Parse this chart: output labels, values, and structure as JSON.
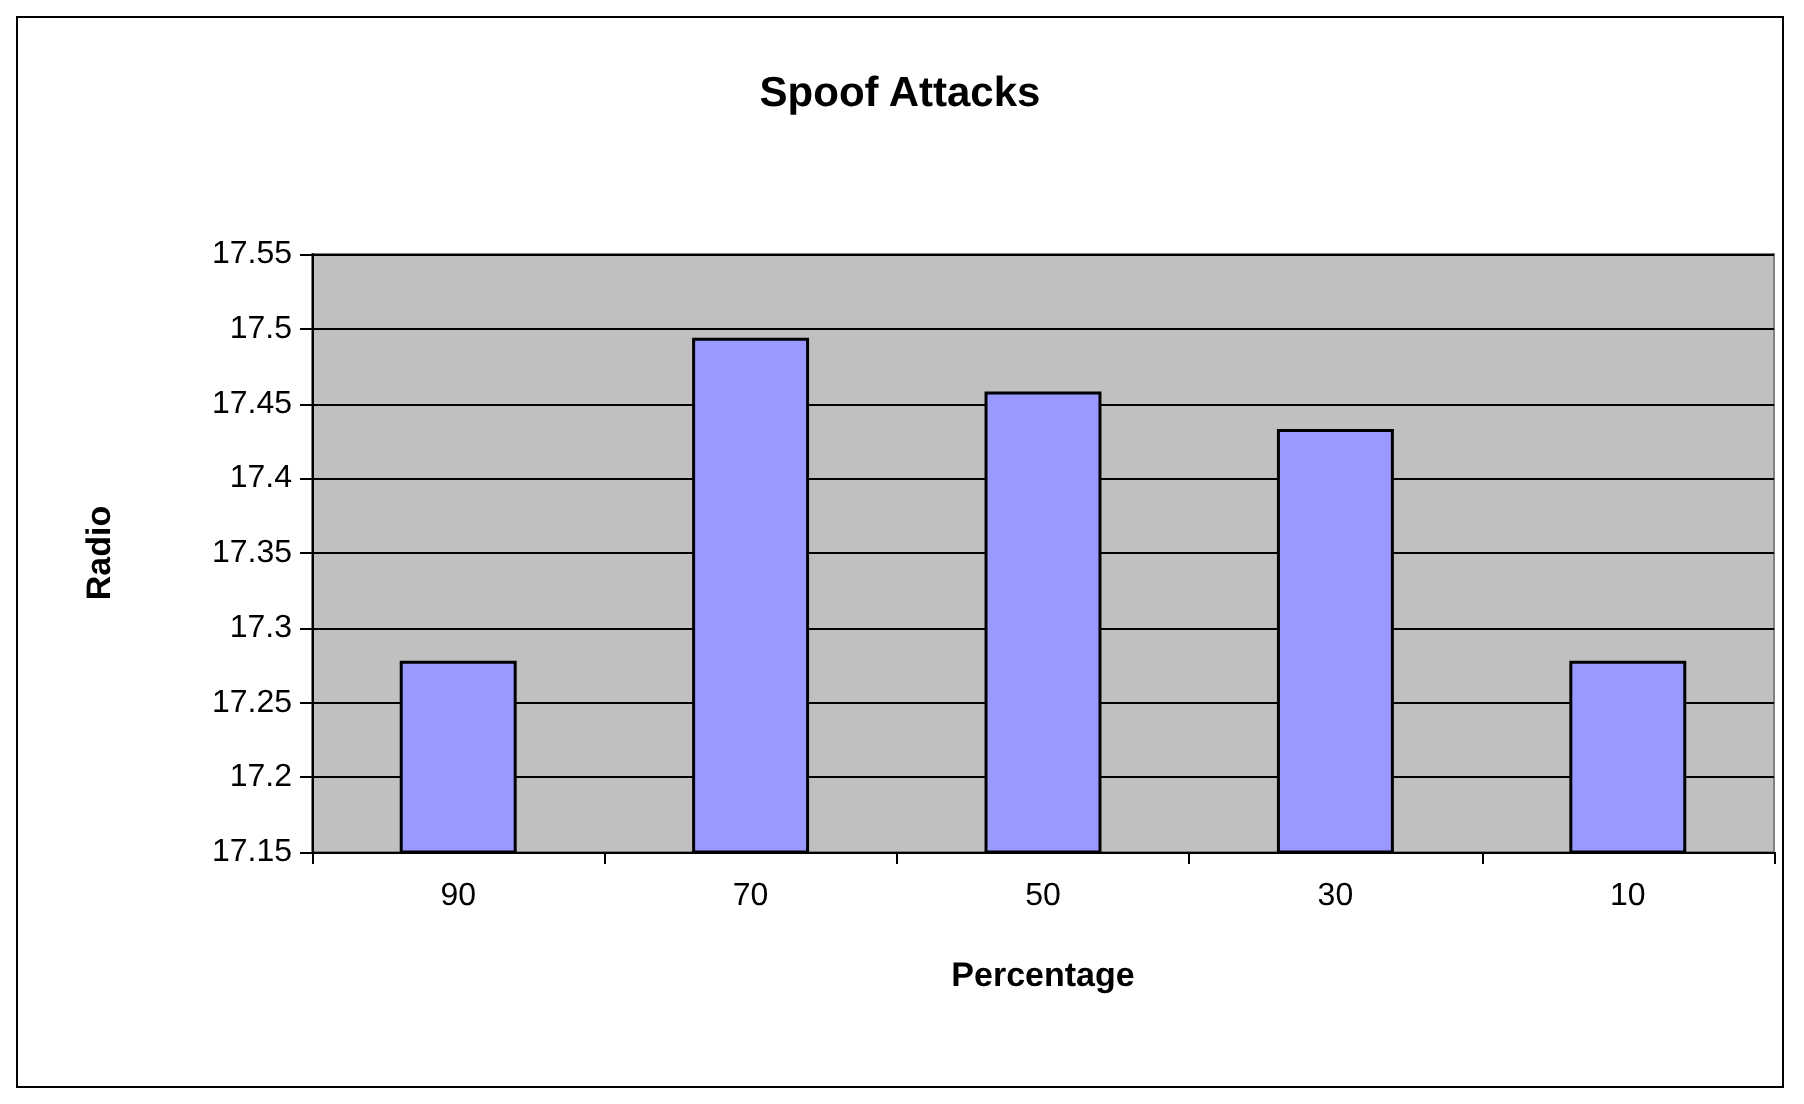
{
  "chart_data": {
    "type": "bar",
    "title": "Spoof Attacks",
    "xlabel": "Percentage",
    "ylabel": "Radio",
    "categories": [
      "90",
      "70",
      "50",
      "30",
      "10"
    ],
    "values": [
      17.278,
      17.494,
      17.458,
      17.433,
      17.278
    ],
    "color": "#9999ff",
    "ylim": [
      17.15,
      17.55
    ],
    "yticks": [
      17.15,
      17.2,
      17.25,
      17.3,
      17.35,
      17.4,
      17.45,
      17.5,
      17.55
    ],
    "grid": "y"
  }
}
